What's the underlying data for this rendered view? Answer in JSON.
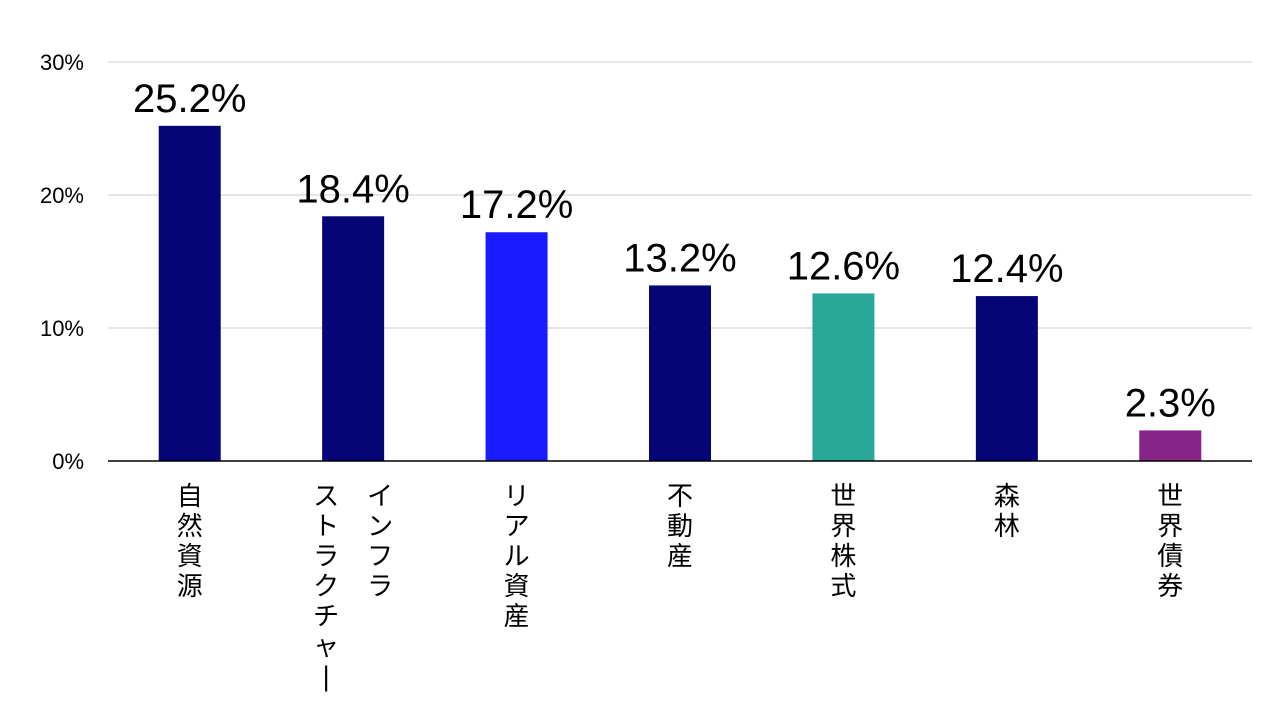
{
  "chart_data": {
    "type": "bar",
    "title": "",
    "xlabel": "",
    "ylabel": "",
    "categories": [
      "自然資源",
      "インフラストラクチャー",
      "リアル資産",
      "不動産",
      "世界株式",
      "森林",
      "世界債券"
    ],
    "category_lines": [
      [
        "自然資源"
      ],
      [
        "インフラ",
        "ストラクチャー"
      ],
      [
        "リアル資産"
      ],
      [
        "不動産"
      ],
      [
        "世界株式"
      ],
      [
        "森林"
      ],
      [
        "世界債券"
      ]
    ],
    "values": [
      25.2,
      18.4,
      17.2,
      13.2,
      12.6,
      12.4,
      2.3
    ],
    "data_labels": [
      "25.2%",
      "18.4%",
      "17.2%",
      "13.2%",
      "12.6%",
      "12.4%",
      "2.3%"
    ],
    "colors": [
      "#050575",
      "#050575",
      "#1a1aff",
      "#050575",
      "#2aa897",
      "#050575",
      "#862487"
    ],
    "ylim": [
      0,
      30
    ],
    "yticks": [
      0,
      10,
      20,
      30
    ],
    "ytick_labels": [
      "0%",
      "10%",
      "20%",
      "30%"
    ],
    "grid": true,
    "legend": "none",
    "category_label_orientation": "vertical"
  }
}
